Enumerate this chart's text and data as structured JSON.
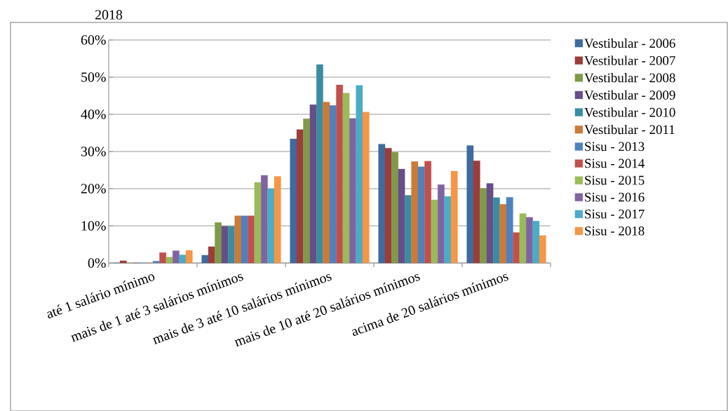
{
  "chart_data": {
    "type": "bar",
    "title": "2018",
    "categories": [
      "até 1 salário mínimo",
      "mais de 1 até 3 salários mínimos",
      "mais de 3 até 10 salários mínimos",
      "mais de 10 até 20 salários mínimos",
      "acima de 20 salários mínimos"
    ],
    "series": [
      {
        "name": "Vestibular - 2006",
        "color": "#3f6a9d",
        "values": [
          0,
          2.1,
          33.4,
          32.0,
          31.6
        ]
      },
      {
        "name": "Vestibular - 2007",
        "color": "#9b3d3b",
        "values": [
          0.6,
          4.4,
          35.9,
          30.9,
          27.5
        ]
      },
      {
        "name": "Vestibular - 2008",
        "color": "#7f9a48",
        "values": [
          0,
          10.9,
          38.8,
          29.8,
          20.1
        ]
      },
      {
        "name": "Vestibular - 2009",
        "color": "#674e87",
        "values": [
          0,
          9.9,
          42.6,
          25.3,
          21.4
        ]
      },
      {
        "name": "Vestibular - 2010",
        "color": "#3b8ca3",
        "values": [
          0,
          9.9,
          53.4,
          18.2,
          17.6
        ]
      },
      {
        "name": "Vestibular - 2011",
        "color": "#cc7a37",
        "values": [
          0,
          12.7,
          43.3,
          27.3,
          15.8
        ]
      },
      {
        "name": "Sisu - 2013",
        "color": "#4f81bd",
        "values": [
          0.5,
          12.7,
          42.4,
          25.9,
          17.7
        ]
      },
      {
        "name": "Sisu - 2014",
        "color": "#c0504d",
        "values": [
          2.8,
          12.7,
          47.9,
          27.4,
          8.2
        ]
      },
      {
        "name": "Sisu - 2015",
        "color": "#9bbb59",
        "values": [
          1.6,
          21.7,
          45.7,
          17.0,
          13.3
        ]
      },
      {
        "name": "Sisu - 2016",
        "color": "#8064a2",
        "values": [
          3.3,
          23.6,
          38.9,
          21.1,
          12.3
        ]
      },
      {
        "name": "Sisu - 2017",
        "color": "#4bacc6",
        "values": [
          2.2,
          20.0,
          47.8,
          17.9,
          11.3
        ]
      },
      {
        "name": "Sisu - 2018",
        "color": "#f79646",
        "values": [
          3.4,
          23.3,
          40.6,
          24.7,
          7.4
        ]
      }
    ],
    "ylim": [
      0,
      60
    ],
    "yticks": [
      {
        "value": 0,
        "label": "0%"
      },
      {
        "value": 10,
        "label": "10%"
      },
      {
        "value": 20,
        "label": "20%"
      },
      {
        "value": 30,
        "label": "30%"
      },
      {
        "value": 40,
        "label": "40%"
      },
      {
        "value": 50,
        "label": "50%"
      },
      {
        "value": 60,
        "label": "60%"
      }
    ],
    "grid": "y",
    "legend": "right"
  }
}
